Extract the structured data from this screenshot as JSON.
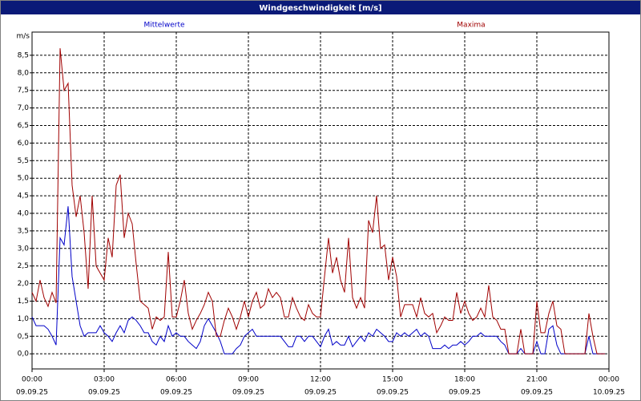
{
  "chart_data": {
    "type": "line",
    "title": "Windgeschwindigkeit [m/s]",
    "ylabel": "m/s",
    "grid": true,
    "xlim": [
      0,
      1440
    ],
    "xticks": [
      {
        "value": 0,
        "label": "00:00"
      },
      {
        "value": 180,
        "label": "03:00"
      },
      {
        "value": 360,
        "label": "06:00"
      },
      {
        "value": 540,
        "label": "09:00"
      },
      {
        "value": 720,
        "label": "12:00"
      },
      {
        "value": 900,
        "label": "15:00"
      },
      {
        "value": 1080,
        "label": "18:00"
      },
      {
        "value": 1260,
        "label": "21:00"
      },
      {
        "value": 1440,
        "label": "00:00"
      }
    ],
    "xtick_dates": [
      "09.09.25",
      "09.09.25",
      "09.09.25",
      "09.09.25",
      "09.09.25",
      "09.09.25",
      "09.09.25",
      "09.09.25",
      "10.09.25"
    ],
    "ylim": [
      -0.43,
      9.16
    ],
    "yticks": [
      {
        "value": 0,
        "label": "0,0"
      },
      {
        "value": 0.5,
        "label": "0,5"
      },
      {
        "value": 1,
        "label": "1,0"
      },
      {
        "value": 1.5,
        "label": "1,5"
      },
      {
        "value": 2,
        "label": "2,0"
      },
      {
        "value": 2.5,
        "label": "2,5"
      },
      {
        "value": 3,
        "label": "3,0"
      },
      {
        "value": 3.5,
        "label": "3,5"
      },
      {
        "value": 4,
        "label": "4,0"
      },
      {
        "value": 4.5,
        "label": "4,5"
      },
      {
        "value": 5,
        "label": "5,0"
      },
      {
        "value": 5.5,
        "label": "5,5"
      },
      {
        "value": 6,
        "label": "6,0"
      },
      {
        "value": 6.5,
        "label": "6,5"
      },
      {
        "value": 7,
        "label": "7,0"
      },
      {
        "value": 7.5,
        "label": "7,5"
      },
      {
        "value": 8,
        "label": "8,0"
      },
      {
        "value": 8.5,
        "label": "8,5"
      }
    ],
    "x": [
      0,
      10,
      20,
      30,
      40,
      50,
      60,
      70,
      80,
      90,
      100,
      110,
      120,
      130,
      140,
      150,
      160,
      170,
      180,
      190,
      200,
      210,
      220,
      230,
      240,
      250,
      260,
      270,
      280,
      290,
      300,
      310,
      320,
      330,
      340,
      350,
      360,
      370,
      380,
      390,
      400,
      410,
      420,
      430,
      440,
      450,
      460,
      470,
      480,
      490,
      500,
      510,
      520,
      530,
      540,
      550,
      560,
      570,
      580,
      590,
      600,
      610,
      620,
      630,
      640,
      650,
      660,
      670,
      680,
      690,
      700,
      710,
      720,
      730,
      740,
      750,
      760,
      770,
      780,
      790,
      800,
      810,
      820,
      830,
      840,
      850,
      860,
      870,
      880,
      890,
      900,
      910,
      920,
      930,
      940,
      950,
      960,
      970,
      980,
      990,
      1000,
      1010,
      1020,
      1030,
      1040,
      1050,
      1060,
      1070,
      1080,
      1090,
      1100,
      1110,
      1120,
      1130,
      1140,
      1150,
      1160,
      1170,
      1180,
      1190,
      1200,
      1210,
      1220,
      1230,
      1240,
      1250,
      1260,
      1270,
      1280,
      1290,
      1300,
      1310,
      1320,
      1330,
      1340,
      1350,
      1360,
      1370,
      1380,
      1390,
      1400,
      1410,
      1420,
      1430
    ],
    "series": [
      {
        "name": "Mittelwerte",
        "color": "#0000c8",
        "values": [
          1.05,
          0.8,
          0.8,
          0.8,
          0.7,
          0.5,
          0.25,
          3.3,
          3.1,
          4.2,
          2.2,
          1.5,
          0.8,
          0.5,
          0.6,
          0.6,
          0.6,
          0.8,
          0.6,
          0.5,
          0.35,
          0.6,
          0.8,
          0.6,
          0.95,
          1.05,
          0.95,
          0.8,
          0.6,
          0.6,
          0.35,
          0.25,
          0.5,
          0.35,
          0.8,
          0.5,
          0.6,
          0.5,
          0.5,
          0.35,
          0.25,
          0.15,
          0.35,
          0.8,
          1.0,
          0.8,
          0.6,
          0.35,
          0,
          0,
          0,
          0.15,
          0.25,
          0.5,
          0.6,
          0.7,
          0.5,
          0.5,
          0.5,
          0.5,
          0.5,
          0.5,
          0.5,
          0.35,
          0.2,
          0.2,
          0.5,
          0.5,
          0.35,
          0.5,
          0.5,
          0.35,
          0.2,
          0.5,
          0.7,
          0.25,
          0.35,
          0.25,
          0.25,
          0.5,
          0.2,
          0.35,
          0.5,
          0.35,
          0.6,
          0.5,
          0.7,
          0.6,
          0.5,
          0.35,
          0.35,
          0.6,
          0.5,
          0.6,
          0.5,
          0.6,
          0.7,
          0.5,
          0.6,
          0.5,
          0.15,
          0.15,
          0.15,
          0.25,
          0.15,
          0.25,
          0.25,
          0.35,
          0.25,
          0.35,
          0.5,
          0.5,
          0.6,
          0.5,
          0.5,
          0.5,
          0.5,
          0.35,
          0.25,
          0,
          0,
          0,
          0.15,
          0,
          0,
          0,
          0.35,
          0,
          0,
          0.7,
          0.8,
          0.25,
          0,
          0,
          0,
          0,
          0,
          0,
          0,
          0.5,
          0,
          0,
          0,
          0
        ]
      },
      {
        "name": "Maxima",
        "color": "#a00000",
        "values": [
          1.75,
          1.5,
          2.1,
          1.6,
          1.35,
          1.75,
          1.45,
          8.7,
          7.5,
          7.7,
          4.8,
          3.9,
          4.5,
          3.45,
          1.85,
          4.5,
          2.5,
          2.3,
          2.1,
          3.3,
          2.75,
          4.8,
          5.1,
          3.3,
          4.0,
          3.7,
          2.55,
          1.5,
          1.4,
          1.3,
          0.7,
          1.05,
          0.95,
          1.05,
          2.9,
          1.05,
          1.05,
          1.5,
          2.1,
          1.15,
          0.7,
          0.95,
          1.15,
          1.4,
          1.75,
          1.5,
          0.5,
          0.5,
          0.95,
          1.3,
          1.05,
          0.7,
          1.05,
          1.5,
          1.05,
          1.5,
          1.75,
          1.3,
          1.4,
          1.85,
          1.6,
          1.75,
          1.6,
          1.05,
          1.05,
          1.6,
          1.3,
          1.05,
          0.95,
          1.4,
          1.15,
          1.05,
          1.05,
          2.2,
          3.3,
          2.3,
          2.75,
          2.1,
          1.75,
          3.3,
          1.6,
          1.3,
          1.6,
          1.3,
          3.8,
          3.45,
          4.5,
          3.0,
          3.1,
          2.1,
          2.75,
          2.2,
          1.05,
          1.4,
          1.4,
          1.4,
          1.05,
          1.6,
          1.15,
          1.05,
          1.15,
          0.6,
          0.8,
          1.05,
          0.95,
          0.95,
          1.75,
          1.15,
          1.5,
          1.15,
          0.95,
          1.05,
          1.3,
          1.05,
          1.95,
          1.05,
          0.95,
          0.7,
          0.7,
          0,
          0,
          0,
          0.7,
          0,
          0,
          0,
          1.5,
          0.6,
          0.6,
          1.15,
          1.5,
          0.8,
          0.7,
          0,
          0,
          0,
          0,
          0,
          0,
          1.15,
          0.5,
          0,
          0,
          0
        ]
      }
    ]
  }
}
